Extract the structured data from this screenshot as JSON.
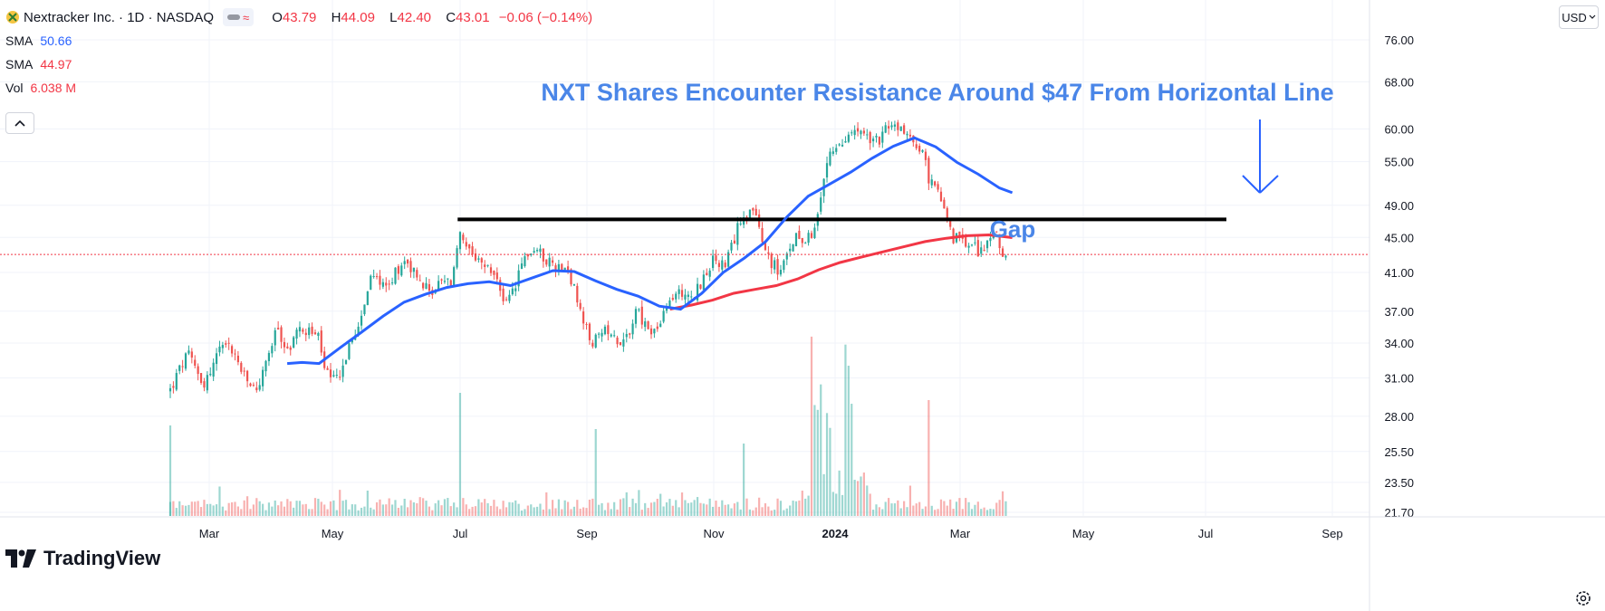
{
  "header": {
    "symbol_title": "Nextracker Inc. · 1D · NASDAQ",
    "ohlc": [
      {
        "label": "O",
        "value": "43.79"
      },
      {
        "label": "H",
        "value": "44.09"
      },
      {
        "label": "L",
        "value": "42.40"
      },
      {
        "label": "C",
        "value": "43.01"
      }
    ],
    "change": "−0.06 (−0.14%)"
  },
  "indicators": [
    {
      "name": "SMA",
      "value": "50.66",
      "color": "#2962ff"
    },
    {
      "name": "SMA",
      "value": "44.97",
      "color": "#f23645"
    },
    {
      "name": "Vol",
      "value": "6.038 M",
      "color": "#f23645"
    }
  ],
  "currency": "USD",
  "brand": "TradingView",
  "colors": {
    "up": "#26a69a",
    "down": "#ef5350",
    "sma_fast": "#2962ff",
    "sma_slow": "#f23645",
    "annotation": "#4a86e8",
    "resistance": "#000000"
  },
  "chart_data": {
    "type": "candlestick",
    "title": "NXT Shares Encounter Resistance Around $47 From Horizontal Line",
    "annotations": [
      {
        "text": "NXT Shares Encounter Resistance Around $47 From Horizontal Line"
      },
      {
        "text": "Gap"
      }
    ],
    "x_tick_labels": [
      "Mar",
      "May",
      "Jul",
      "Sep",
      "Nov",
      "2024",
      "Mar",
      "May",
      "Jul",
      "Sep"
    ],
    "y_tick_labels": [
      "76.00",
      "68.00",
      "60.00",
      "55.00",
      "49.00",
      "45.00",
      "41.00",
      "37.00",
      "34.00",
      "31.00",
      "28.00",
      "25.50",
      "23.50",
      "21.70"
    ],
    "y_ticks": [
      76,
      68,
      60,
      55,
      49,
      45,
      41,
      37,
      34,
      31,
      28,
      25.5,
      23.5,
      21.7
    ],
    "y_scale": "log",
    "ylim": [
      21.4,
      80
    ],
    "x_range_days": [
      0,
      605
    ],
    "last_price": 43.01,
    "resistance_level": 47.2,
    "resistance_range_days": [
      136,
      523
    ],
    "candle_anchors": [
      [
        0,
        30.0
      ],
      [
        4,
        31.5
      ],
      [
        8,
        33.0
      ],
      [
        12,
        31.8
      ],
      [
        16,
        30.5
      ],
      [
        20,
        32.0
      ],
      [
        25,
        34.5
      ],
      [
        30,
        33.0
      ],
      [
        35,
        31.0
      ],
      [
        40,
        30.0
      ],
      [
        43,
        31.0
      ],
      [
        47,
        33.5
      ],
      [
        51,
        35.5
      ],
      [
        54,
        33.0
      ],
      [
        58,
        34.5
      ],
      [
        62,
        35.5
      ],
      [
        66,
        35.0
      ],
      [
        70,
        34.5
      ],
      [
        72,
        32.0
      ],
      [
        76,
        30.5
      ],
      [
        80,
        31.5
      ],
      [
        85,
        34.0
      ],
      [
        90,
        37.0
      ],
      [
        94,
        40.0
      ],
      [
        98,
        40.5
      ],
      [
        102,
        39.5
      ],
      [
        107,
        41.5
      ],
      [
        111,
        42.5
      ],
      [
        115,
        41.0
      ],
      [
        119,
        39.5
      ],
      [
        123,
        39.0
      ],
      [
        128,
        40.0
      ],
      [
        132,
        39.8
      ],
      [
        136,
        45.5
      ],
      [
        139,
        43.5
      ],
      [
        144,
        42.0
      ],
      [
        149,
        41.5
      ],
      [
        153,
        40.5
      ],
      [
        158,
        37.5
      ],
      [
        163,
        40.0
      ],
      [
        167,
        43.0
      ],
      [
        172,
        43.5
      ],
      [
        177,
        42.5
      ],
      [
        182,
        41.5
      ],
      [
        186,
        42.0
      ],
      [
        189,
        40.0
      ],
      [
        193,
        36.5
      ],
      [
        198,
        34.0
      ],
      [
        202,
        34.5
      ],
      [
        207,
        35.5
      ],
      [
        211,
        34.0
      ],
      [
        216,
        35.0
      ],
      [
        219,
        37.5
      ],
      [
        223,
        35.5
      ],
      [
        228,
        35.0
      ],
      [
        232,
        36.5
      ],
      [
        236,
        38.5
      ],
      [
        241,
        39.0
      ],
      [
        246,
        38.5
      ],
      [
        251,
        40.5
      ],
      [
        256,
        42.5
      ],
      [
        261,
        41.5
      ],
      [
        265,
        44.5
      ],
      [
        269,
        48.0
      ],
      [
        274,
        48.5
      ],
      [
        278,
        44.5
      ],
      [
        282,
        42.5
      ],
      [
        286,
        41.0
      ],
      [
        290,
        42.5
      ],
      [
        294,
        45.5
      ],
      [
        298,
        45.0
      ],
      [
        302,
        45.5
      ],
      [
        306,
        50.0
      ],
      [
        310,
        55.5
      ],
      [
        315,
        57.5
      ],
      [
        320,
        59.0
      ],
      [
        324,
        59.5
      ],
      [
        328,
        58.5
      ],
      [
        332,
        58.0
      ],
      [
        336,
        59.5
      ],
      [
        341,
        60.5
      ],
      [
        346,
        59.5
      ],
      [
        350,
        58.0
      ],
      [
        354,
        56.0
      ],
      [
        357,
        52.5
      ],
      [
        361,
        50.5
      ],
      [
        365,
        48.5
      ],
      [
        368,
        45.0
      ],
      [
        372,
        44.5
      ],
      [
        376,
        44.0
      ],
      [
        380,
        43.5
      ],
      [
        384,
        44.0
      ],
      [
        387,
        46.0
      ],
      [
        390,
        44.0
      ],
      [
        393,
        43.0
      ]
    ],
    "series": [
      {
        "name": "SMA",
        "value_label": "50.66",
        "color": "#2962ff",
        "x": [
          55,
          62,
          70,
          80,
          90,
          100,
          110,
          120,
          130,
          140,
          150,
          160,
          170,
          180,
          190,
          200,
          210,
          220,
          230,
          240,
          250,
          260,
          270,
          280,
          290,
          300,
          310,
          320,
          330,
          340,
          350,
          360,
          370,
          380,
          390,
          396
        ],
        "y": [
          32.2,
          32.3,
          32.2,
          33.6,
          35.0,
          36.5,
          37.9,
          38.7,
          39.4,
          39.8,
          40.0,
          39.6,
          40.4,
          41.2,
          41.1,
          40.1,
          39.2,
          38.5,
          37.5,
          37.2,
          38.8,
          41.0,
          42.6,
          44.5,
          47.5,
          50.2,
          51.8,
          53.5,
          55.5,
          57.3,
          58.6,
          57.2,
          54.9,
          53.2,
          51.3,
          50.66
        ]
      },
      {
        "name": "SMA",
        "value_label": "44.97",
        "color": "#f23645",
        "x": [
          235,
          245,
          255,
          265,
          275,
          285,
          295,
          305,
          315,
          325,
          335,
          345,
          355,
          365,
          375,
          385,
          396
        ],
        "y": [
          37.2,
          37.6,
          38.1,
          38.8,
          39.2,
          39.6,
          40.3,
          41.3,
          42.1,
          42.7,
          43.3,
          43.9,
          44.5,
          44.9,
          45.2,
          45.3,
          44.97
        ]
      }
    ],
    "volume": {
      "name": "Vol",
      "value_label": "6.038 M"
    }
  }
}
